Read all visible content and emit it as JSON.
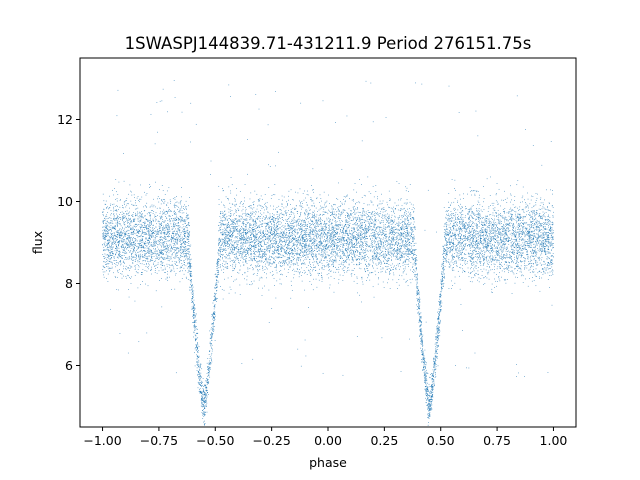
{
  "chart_data": {
    "type": "scatter",
    "title": "1SWASPJ144839.71-431211.9 Period 276151.75s",
    "xlabel": "phase",
    "ylabel": "flux",
    "xlim": [
      -1.1,
      1.1
    ],
    "ylim": [
      4.5,
      13.5
    ],
    "x_ticks": [
      -1.0,
      -0.75,
      -0.5,
      -0.25,
      0.0,
      0.25,
      0.5,
      0.75,
      1.0
    ],
    "x_tick_labels": [
      "−1.00",
      "−0.75",
      "−0.50",
      "−0.25",
      "0.00",
      "0.25",
      "0.50",
      "0.75",
      "1.00"
    ],
    "y_ticks": [
      6,
      8,
      10,
      12
    ],
    "y_tick_labels": [
      "6",
      "8",
      "10",
      "12"
    ],
    "grid": false,
    "legend": "none",
    "marker_color": "#1f77b4",
    "series": [
      {
        "model": "eclipsing-binary light curve (phase-folded, repeated over two cycles)",
        "baseline_flux": 9.1,
        "scatter_sd": 0.45,
        "eclipses": [
          {
            "center_phase": -0.55,
            "min_flux": 5.0,
            "half_width": 0.07
          },
          {
            "center_phase": 0.45,
            "min_flux": 5.0,
            "half_width": 0.07
          }
        ],
        "point_count": 12000
      }
    ]
  }
}
